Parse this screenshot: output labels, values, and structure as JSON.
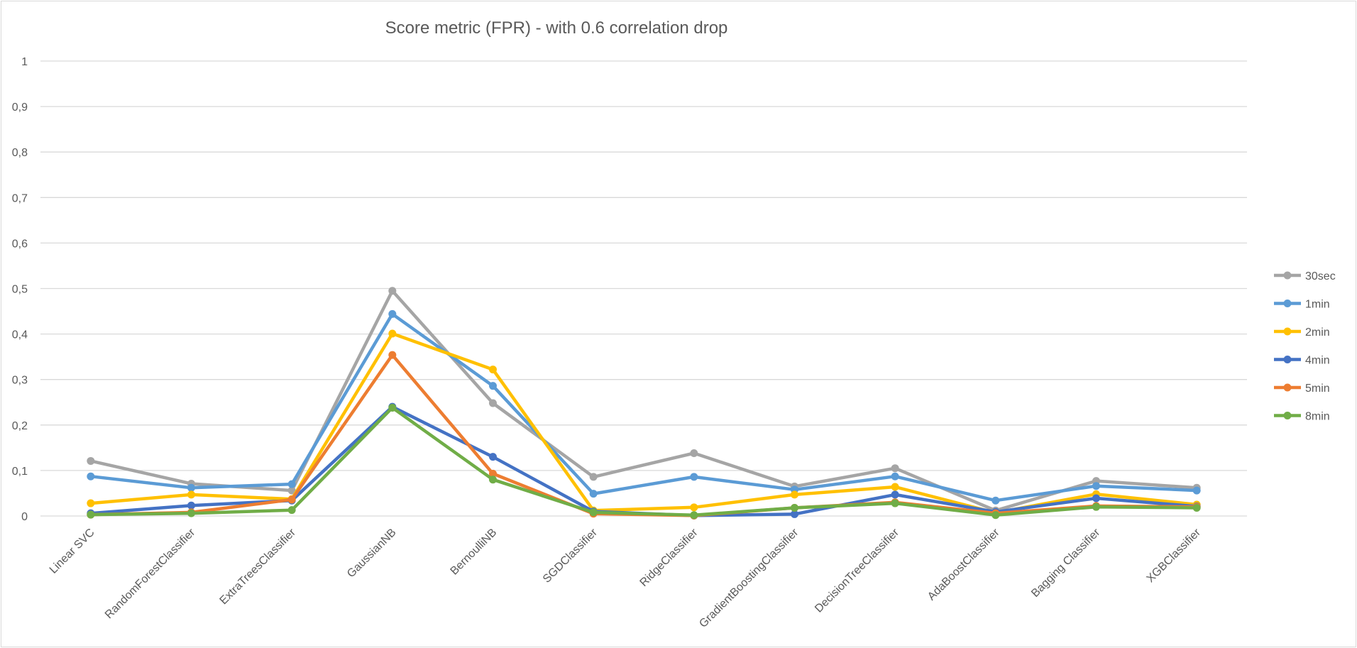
{
  "chart_data": {
    "type": "line",
    "title": "Score metric (FPR) - with 0.6 correlation drop",
    "xlabel": "",
    "ylabel": "",
    "ylim": [
      0,
      1
    ],
    "y_ticks": [
      "0",
      "0,1",
      "0,2",
      "0,3",
      "0,4",
      "0,5",
      "0,6",
      "0,7",
      "0,8",
      "0,9",
      "1"
    ],
    "grid": true,
    "legend_position": "right",
    "categories": [
      "Linear SVC",
      "RandomForestClassifier",
      "ExtraTreesClassifier",
      "GaussianNB",
      "BernoulliNB",
      "SGDClassifier",
      "RidgeClassifier",
      "GradientBoostingClassifier",
      "DecisionTreeClassifier",
      "AdaBoostClassifier",
      "Bagging Classifier",
      "XGBClassifier"
    ],
    "series": [
      {
        "name": "30sec",
        "color": "#A5A5A5",
        "values": [
          0.121,
          0.071,
          0.056,
          0.495,
          0.248,
          0.086,
          0.138,
          0.065,
          0.105,
          0.012,
          0.077,
          0.062
        ]
      },
      {
        "name": "1min",
        "color": "#5B9BD5",
        "values": [
          0.087,
          0.062,
          0.07,
          0.444,
          0.286,
          0.049,
          0.086,
          0.058,
          0.087,
          0.034,
          0.066,
          0.056
        ]
      },
      {
        "name": "2min",
        "color": "#FFC000",
        "values": [
          0.028,
          0.047,
          0.037,
          0.401,
          0.322,
          0.012,
          0.019,
          0.047,
          0.064,
          0.007,
          0.048,
          0.025
        ]
      },
      {
        "name": "4min",
        "color": "#4472C4",
        "values": [
          0.006,
          0.023,
          0.034,
          0.24,
          0.13,
          0.01,
          0.001,
          0.004,
          0.047,
          0.009,
          0.039,
          0.021
        ]
      },
      {
        "name": "5min",
        "color": "#ED7D31",
        "values": [
          0.003,
          0.008,
          0.036,
          0.354,
          0.093,
          0.005,
          0.001,
          0.018,
          0.03,
          0.006,
          0.022,
          0.02
        ]
      },
      {
        "name": "8min",
        "color": "#70AD47",
        "values": [
          0.003,
          0.006,
          0.013,
          0.238,
          0.08,
          0.008,
          0.002,
          0.018,
          0.028,
          0.002,
          0.02,
          0.018
        ]
      }
    ]
  }
}
